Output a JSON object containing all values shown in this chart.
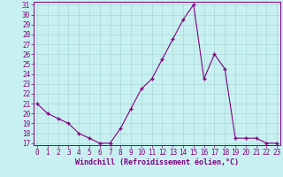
{
  "x": [
    0,
    1,
    2,
    3,
    4,
    5,
    6,
    7,
    8,
    9,
    10,
    11,
    12,
    13,
    14,
    15,
    16,
    17,
    18,
    19,
    20,
    21,
    22,
    23
  ],
  "y": [
    21,
    20,
    19.5,
    19,
    18,
    17.5,
    17,
    17,
    18.5,
    20.5,
    22.5,
    23.5,
    25.5,
    27.5,
    29.5,
    31,
    23.5,
    26,
    24.5,
    17.5,
    17.5,
    17.5,
    17,
    17
  ],
  "line_color": "#800080",
  "marker": "+",
  "bg_color": "#c8f0f0",
  "grid_color": "#a8d8d8",
  "xlabel": "Windchill (Refroidissement éolien,°C)",
  "ylim_min": 17,
  "ylim_max": 31,
  "xlim_min": 0,
  "xlim_max": 23,
  "yticks": [
    17,
    18,
    19,
    20,
    21,
    22,
    23,
    24,
    25,
    26,
    27,
    28,
    29,
    30,
    31
  ],
  "xticks": [
    0,
    1,
    2,
    3,
    4,
    5,
    6,
    7,
    8,
    9,
    10,
    11,
    12,
    13,
    14,
    15,
    16,
    17,
    18,
    19,
    20,
    21,
    22,
    23
  ],
  "tick_color": "#800080",
  "label_color": "#800080",
  "spine_color": "#800080",
  "tick_font_size": 5.5,
  "xlabel_font_size": 6.0,
  "linewidth": 0.8,
  "markersize": 3,
  "markeredgewidth": 1.0
}
